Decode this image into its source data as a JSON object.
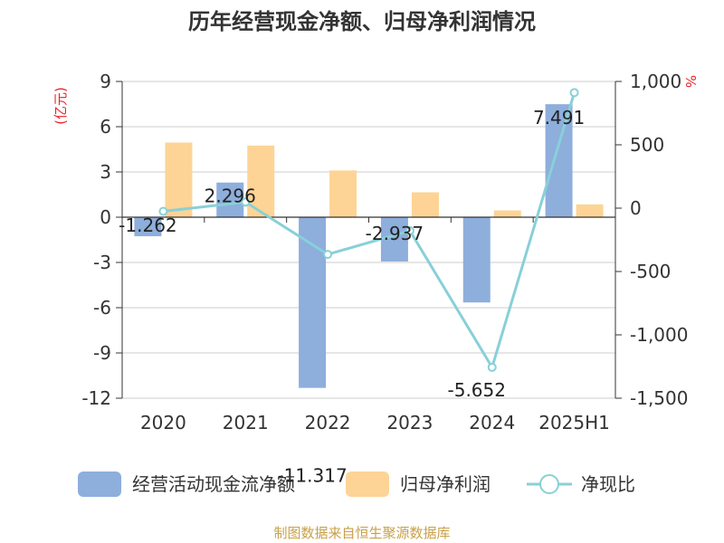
{
  "title": "历年经营现金净额、归母净利润情况",
  "y_left_unit": "(亿元)",
  "y_right_unit": "%",
  "source": "制图数据来自恒生聚源数据库",
  "colors": {
    "cash_flow": "#8eaedc",
    "net_profit": "#fdd495",
    "ratio": "#88d0d8",
    "axis": "#333333",
    "grid": "#cccccc"
  },
  "chart_data": {
    "type": "bar",
    "categories": [
      "2020",
      "2021",
      "2022",
      "2023",
      "2024",
      "2025H1"
    ],
    "series": [
      {
        "name": "经营活动现金流净额",
        "type": "bar",
        "axis": "left",
        "values": [
          -1.262,
          2.296,
          -11.317,
          -2.937,
          -5.652,
          7.491
        ]
      },
      {
        "name": "归母净利润",
        "type": "bar",
        "axis": "left",
        "values": [
          4.95,
          4.75,
          3.1,
          1.65,
          0.45,
          0.85
        ]
      },
      {
        "name": "净现比",
        "type": "line",
        "axis": "right",
        "values": [
          -25,
          48,
          -365,
          -178,
          -1256,
          912
        ]
      }
    ],
    "data_labels": [
      "-1.262",
      "2.296",
      "-11.317",
      "-2.937",
      "-5.652",
      "7.491"
    ],
    "y_left": {
      "ticks": [
        "9",
        "6",
        "3",
        "0",
        "-3",
        "-6",
        "-9",
        "-12"
      ],
      "range": [
        -12,
        9
      ]
    },
    "y_right": {
      "ticks": [
        "1,000",
        "500",
        "0",
        "-500",
        "-1,000",
        "-1,500"
      ],
      "range": [
        -1500,
        1000
      ]
    },
    "grid": true,
    "legend_position": "bottom"
  }
}
